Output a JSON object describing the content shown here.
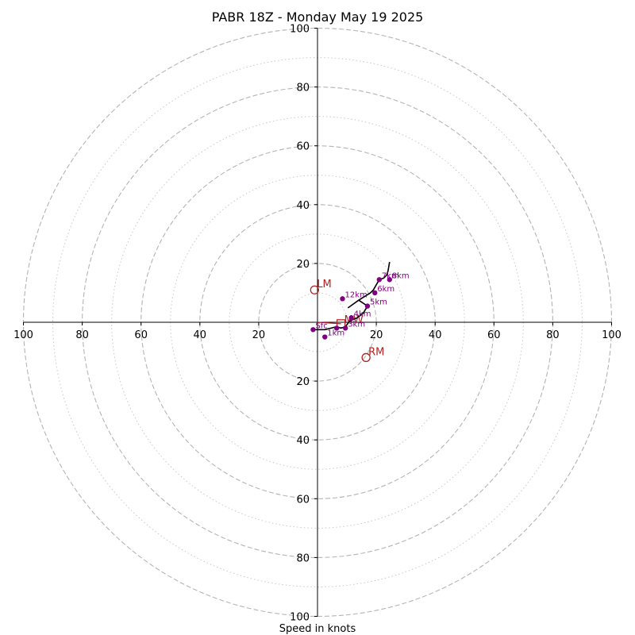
{
  "chart_data": {
    "type": "scatter",
    "title": "PABR 18Z - Monday May 19 2025",
    "xlabel": "Speed in knots",
    "ylabel": "",
    "xlim": [
      -100,
      100
    ],
    "ylim": [
      -100,
      100
    ],
    "grid": true,
    "axis_ticks": {
      "x": [
        "100",
        "80",
        "60",
        "40",
        "20",
        "20",
        "40",
        "60",
        "80",
        "100"
      ],
      "x_values": [
        -100,
        -80,
        -60,
        -40,
        -20,
        20,
        40,
        60,
        80,
        100
      ],
      "y": [
        "100",
        "80",
        "60",
        "40",
        "20",
        "20",
        "40",
        "60",
        "80",
        "100"
      ],
      "y_values": [
        100,
        80,
        60,
        40,
        20,
        -20,
        -40,
        -60,
        -80,
        -100
      ]
    },
    "rings": {
      "dashed": [
        20,
        40,
        60,
        80,
        100
      ],
      "dotted": [
        10,
        30,
        50,
        70,
        90
      ]
    },
    "hodograph_trace": {
      "color": "#000000",
      "points": [
        [
          -1.5,
          -2.5
        ],
        [
          2.5,
          -2.5
        ],
        [
          6.5,
          -1.5
        ],
        [
          8.0,
          -2.0
        ],
        [
          9.5,
          -1.5
        ],
        [
          11.0,
          0.5
        ],
        [
          13.5,
          1.5
        ],
        [
          15.5,
          3.0
        ],
        [
          17.0,
          5.5
        ],
        [
          14.0,
          7.5
        ],
        [
          10.5,
          5.0
        ],
        [
          14.0,
          7.5
        ],
        [
          18.0,
          10.0
        ],
        [
          19.0,
          11.0
        ],
        [
          21.0,
          14.5
        ],
        [
          22.5,
          15.0
        ],
        [
          23.5,
          16.0
        ],
        [
          24.0,
          17.5
        ],
        [
          24.5,
          20.5
        ]
      ]
    },
    "height_markers": {
      "color": "#800080",
      "points": [
        {
          "x": -1.5,
          "y": -2.5,
          "label": "Sfc"
        },
        {
          "x": 2.5,
          "y": -5.0,
          "label": "1km"
        },
        {
          "x": 6.5,
          "y": -2.0,
          "label": ""
        },
        {
          "x": 9.5,
          "y": -2.0,
          "label": "3km"
        },
        {
          "x": 11.5,
          "y": 1.5,
          "label": "4km"
        },
        {
          "x": 17.0,
          "y": 5.5,
          "label": "5km"
        },
        {
          "x": 19.5,
          "y": 10.0,
          "label": "6km"
        },
        {
          "x": 21.0,
          "y": 14.5,
          "label": "7km"
        },
        {
          "x": 24.5,
          "y": 14.5,
          "label": "8km"
        },
        {
          "x": 8.5,
          "y": 8.0,
          "label": "12km"
        }
      ]
    },
    "storm_motion": {
      "color": "#b22222",
      "points": [
        {
          "x": -1.0,
          "y": 11.0,
          "label": "LM"
        },
        {
          "x": 16.5,
          "y": -12.0,
          "label": "RM"
        },
        {
          "x": 8.0,
          "y": -0.5,
          "label": "MW"
        }
      ],
      "shear_line": [
        [
          0,
          0
        ],
        [
          8.0,
          -0.5
        ]
      ]
    }
  }
}
